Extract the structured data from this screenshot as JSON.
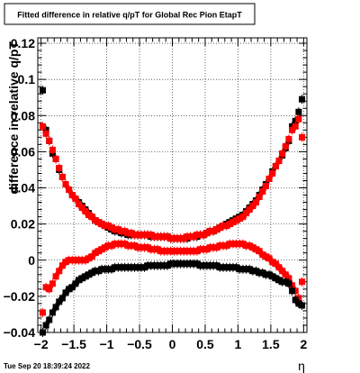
{
  "chart_data": {
    "type": "scatter",
    "title": "Fitted difference in relative q/pT for Global Rec Pion EtapT",
    "xlabel": "η",
    "ylabel": "difference in relative q/pT",
    "xlim": [
      -2.05,
      2.05
    ],
    "ylim": [
      -0.04,
      0.123
    ],
    "xticks": [
      -2,
      -1.5,
      -1,
      -0.5,
      0,
      0.5,
      1,
      1.5,
      2
    ],
    "xtick_labels": [
      "−2",
      "−1.5",
      "−1",
      "−0.5",
      "0",
      "0.5",
      "1",
      "1.5",
      "2"
    ],
    "yticks": [
      -0.04,
      -0.02,
      0,
      0.02,
      0.04,
      0.06,
      0.08,
      0.1,
      0.12
    ],
    "ytick_labels": [
      "−0.04",
      "−0.02",
      "0",
      "0.02",
      "0.04",
      "0.06",
      "0.08",
      "0.1",
      "0.12"
    ],
    "grid": true,
    "timestamp": "Tue Sep 20 18:39:24 2022",
    "series": [
      {
        "color": "#000000",
        "x": [
          -1.975,
          -1.925,
          -1.875,
          -1.825,
          -1.775,
          -1.725,
          -1.675,
          -1.625,
          -1.575,
          -1.525,
          -1.475,
          -1.425,
          -1.375,
          -1.325,
          -1.275,
          -1.225,
          -1.175,
          -1.125,
          -1.075,
          -1.025,
          -0.975,
          -0.925,
          -0.875,
          -0.825,
          -0.775,
          -0.725,
          -0.675,
          -0.625,
          -0.575,
          -0.525,
          -0.475,
          -0.425,
          -0.375,
          -0.325,
          -0.275,
          -0.225,
          -0.175,
          -0.125,
          -0.075,
          -0.025,
          0.025,
          0.075,
          0.125,
          0.175,
          0.225,
          0.275,
          0.325,
          0.375,
          0.425,
          0.475,
          0.525,
          0.575,
          0.625,
          0.675,
          0.725,
          0.775,
          0.825,
          0.875,
          0.925,
          0.975,
          1.025,
          1.075,
          1.125,
          1.175,
          1.225,
          1.275,
          1.325,
          1.375,
          1.425,
          1.475,
          1.525,
          1.575,
          1.625,
          1.675,
          1.725,
          1.775,
          1.825,
          1.875,
          1.925,
          1.975
        ],
        "y": [
          0.094,
          0.072,
          0.066,
          0.059,
          0.056,
          0.05,
          0.046,
          0.042,
          0.039,
          0.036,
          0.034,
          0.032,
          0.03,
          0.028,
          0.026,
          0.024,
          0.022,
          0.021,
          0.02,
          0.019,
          0.018,
          0.017,
          0.016,
          0.016,
          0.015,
          0.015,
          0.014,
          0.014,
          0.014,
          0.014,
          0.014,
          0.014,
          0.014,
          0.013,
          0.013,
          0.013,
          0.013,
          0.013,
          0.013,
          0.012,
          0.012,
          0.012,
          0.012,
          0.012,
          0.012,
          0.013,
          0.013,
          0.013,
          0.014,
          0.014,
          0.015,
          0.016,
          0.016,
          0.017,
          0.018,
          0.019,
          0.02,
          0.021,
          0.022,
          0.023,
          0.024,
          0.025,
          0.027,
          0.029,
          0.031,
          0.033,
          0.036,
          0.039,
          0.042,
          0.045,
          0.049,
          0.052,
          0.055,
          0.058,
          0.062,
          0.066,
          0.074,
          0.077,
          0.082,
          0.089
        ]
      },
      {
        "color": "#ff0000",
        "x": [
          -1.975,
          -1.925,
          -1.875,
          -1.825,
          -1.775,
          -1.725,
          -1.675,
          -1.625,
          -1.575,
          -1.525,
          -1.475,
          -1.425,
          -1.375,
          -1.325,
          -1.275,
          -1.225,
          -1.175,
          -1.125,
          -1.075,
          -1.025,
          -0.975,
          -0.925,
          -0.875,
          -0.825,
          -0.775,
          -0.725,
          -0.675,
          -0.625,
          -0.575,
          -0.525,
          -0.475,
          -0.425,
          -0.375,
          -0.325,
          -0.275,
          -0.225,
          -0.175,
          -0.125,
          -0.075,
          -0.025,
          0.025,
          0.075,
          0.125,
          0.175,
          0.225,
          0.275,
          0.325,
          0.375,
          0.425,
          0.475,
          0.525,
          0.575,
          0.625,
          0.675,
          0.725,
          0.775,
          0.825,
          0.875,
          0.925,
          0.975,
          1.025,
          1.075,
          1.125,
          1.175,
          1.225,
          1.275,
          1.325,
          1.375,
          1.425,
          1.475,
          1.525,
          1.575,
          1.625,
          1.675,
          1.725,
          1.775,
          1.825,
          1.875,
          1.925,
          1.975
        ],
        "y": [
          0.074,
          0.07,
          0.066,
          0.061,
          0.056,
          0.051,
          0.046,
          0.042,
          0.039,
          0.036,
          0.034,
          0.031,
          0.029,
          0.027,
          0.025,
          0.024,
          0.022,
          0.021,
          0.02,
          0.019,
          0.019,
          0.018,
          0.017,
          0.017,
          0.016,
          0.016,
          0.015,
          0.015,
          0.014,
          0.014,
          0.014,
          0.014,
          0.014,
          0.014,
          0.013,
          0.013,
          0.013,
          0.013,
          0.013,
          0.012,
          0.012,
          0.012,
          0.012,
          0.012,
          0.013,
          0.013,
          0.013,
          0.014,
          0.014,
          0.014,
          0.015,
          0.016,
          0.016,
          0.017,
          0.018,
          0.019,
          0.019,
          0.02,
          0.021,
          0.022,
          0.023,
          0.024,
          0.026,
          0.028,
          0.03,
          0.032,
          0.035,
          0.038,
          0.041,
          0.045,
          0.048,
          0.052,
          0.055,
          0.059,
          0.063,
          0.067,
          0.072,
          0.074,
          0.078,
          0.068
        ]
      },
      {
        "color": "#ff0000",
        "x": [
          -1.975,
          -1.925,
          -1.875,
          -1.825,
          -1.775,
          -1.725,
          -1.675,
          -1.625,
          -1.575,
          -1.525,
          -1.475,
          -1.425,
          -1.375,
          -1.325,
          -1.275,
          -1.225,
          -1.175,
          -1.125,
          -1.075,
          -1.025,
          -0.975,
          -0.925,
          -0.875,
          -0.825,
          -0.775,
          -0.725,
          -0.675,
          -0.625,
          -0.575,
          -0.525,
          -0.475,
          -0.425,
          -0.375,
          -0.325,
          -0.275,
          -0.225,
          -0.175,
          -0.125,
          -0.075,
          -0.025,
          0.025,
          0.075,
          0.125,
          0.175,
          0.225,
          0.275,
          0.325,
          0.375,
          0.425,
          0.475,
          0.525,
          0.575,
          0.625,
          0.675,
          0.725,
          0.775,
          0.825,
          0.875,
          0.925,
          0.975,
          1.025,
          1.075,
          1.125,
          1.175,
          1.225,
          1.275,
          1.325,
          1.375,
          1.425,
          1.475,
          1.525,
          1.575,
          1.625,
          1.675,
          1.725,
          1.775,
          1.825,
          1.875,
          1.925,
          1.975
        ],
        "y": [
          -0.029,
          -0.015,
          -0.016,
          -0.013,
          -0.009,
          -0.006,
          -0.003,
          -0.001,
          0,
          0,
          0,
          0,
          0,
          0,
          0.001,
          0.002,
          0.004,
          0.005,
          0.006,
          0.007,
          0.008,
          0.008,
          0.009,
          0.009,
          0.009,
          0.009,
          0.008,
          0.008,
          0.008,
          0.007,
          0.007,
          0.007,
          0.007,
          0.006,
          0.006,
          0.006,
          0.005,
          0.005,
          0.005,
          0.005,
          0.005,
          0.005,
          0.005,
          0.005,
          0.005,
          0.005,
          0.005,
          0.005,
          0.006,
          0.006,
          0.006,
          0.007,
          0.007,
          0.007,
          0.008,
          0.008,
          0.008,
          0.009,
          0.009,
          0.009,
          0.009,
          0.009,
          0.008,
          0.008,
          0.007,
          0.006,
          0.005,
          0.003,
          0.002,
          0.001,
          -0.001,
          -0.002,
          -0.004,
          -0.006,
          -0.008,
          -0.01,
          -0.014,
          -0.017,
          -0.021,
          -0.012
        ]
      },
      {
        "color": "#000000",
        "x": [
          -1.975,
          -1.925,
          -1.875,
          -1.825,
          -1.775,
          -1.725,
          -1.675,
          -1.625,
          -1.575,
          -1.525,
          -1.475,
          -1.425,
          -1.375,
          -1.325,
          -1.275,
          -1.225,
          -1.175,
          -1.125,
          -1.075,
          -1.025,
          -0.975,
          -0.925,
          -0.875,
          -0.825,
          -0.775,
          -0.725,
          -0.675,
          -0.625,
          -0.575,
          -0.525,
          -0.475,
          -0.425,
          -0.375,
          -0.325,
          -0.275,
          -0.225,
          -0.175,
          -0.125,
          -0.075,
          -0.025,
          0.025,
          0.075,
          0.125,
          0.175,
          0.225,
          0.275,
          0.325,
          0.375,
          0.425,
          0.475,
          0.525,
          0.575,
          0.625,
          0.675,
          0.725,
          0.775,
          0.825,
          0.875,
          0.925,
          0.975,
          1.025,
          1.075,
          1.125,
          1.175,
          1.225,
          1.275,
          1.325,
          1.375,
          1.425,
          1.475,
          1.525,
          1.575,
          1.625,
          1.675,
          1.725,
          1.775,
          1.825,
          1.875,
          1.925,
          1.975
        ],
        "y": [
          -0.04,
          -0.036,
          -0.033,
          -0.029,
          -0.026,
          -0.023,
          -0.021,
          -0.018,
          -0.016,
          -0.015,
          -0.013,
          -0.011,
          -0.01,
          -0.009,
          -0.008,
          -0.007,
          -0.006,
          -0.006,
          -0.005,
          -0.005,
          -0.005,
          -0.005,
          -0.004,
          -0.004,
          -0.004,
          -0.004,
          -0.004,
          -0.004,
          -0.004,
          -0.004,
          -0.004,
          -0.004,
          -0.003,
          -0.003,
          -0.003,
          -0.003,
          -0.003,
          -0.003,
          -0.003,
          -0.002,
          -0.002,
          -0.002,
          -0.002,
          -0.002,
          -0.002,
          -0.002,
          -0.002,
          -0.002,
          -0.003,
          -0.003,
          -0.003,
          -0.003,
          -0.003,
          -0.003,
          -0.004,
          -0.004,
          -0.004,
          -0.004,
          -0.004,
          -0.004,
          -0.005,
          -0.005,
          -0.005,
          -0.005,
          -0.006,
          -0.006,
          -0.007,
          -0.007,
          -0.008,
          -0.008,
          -0.009,
          -0.01,
          -0.011,
          -0.012,
          -0.012,
          -0.013,
          -0.017,
          -0.022,
          -0.024,
          -0.025
        ]
      }
    ]
  }
}
